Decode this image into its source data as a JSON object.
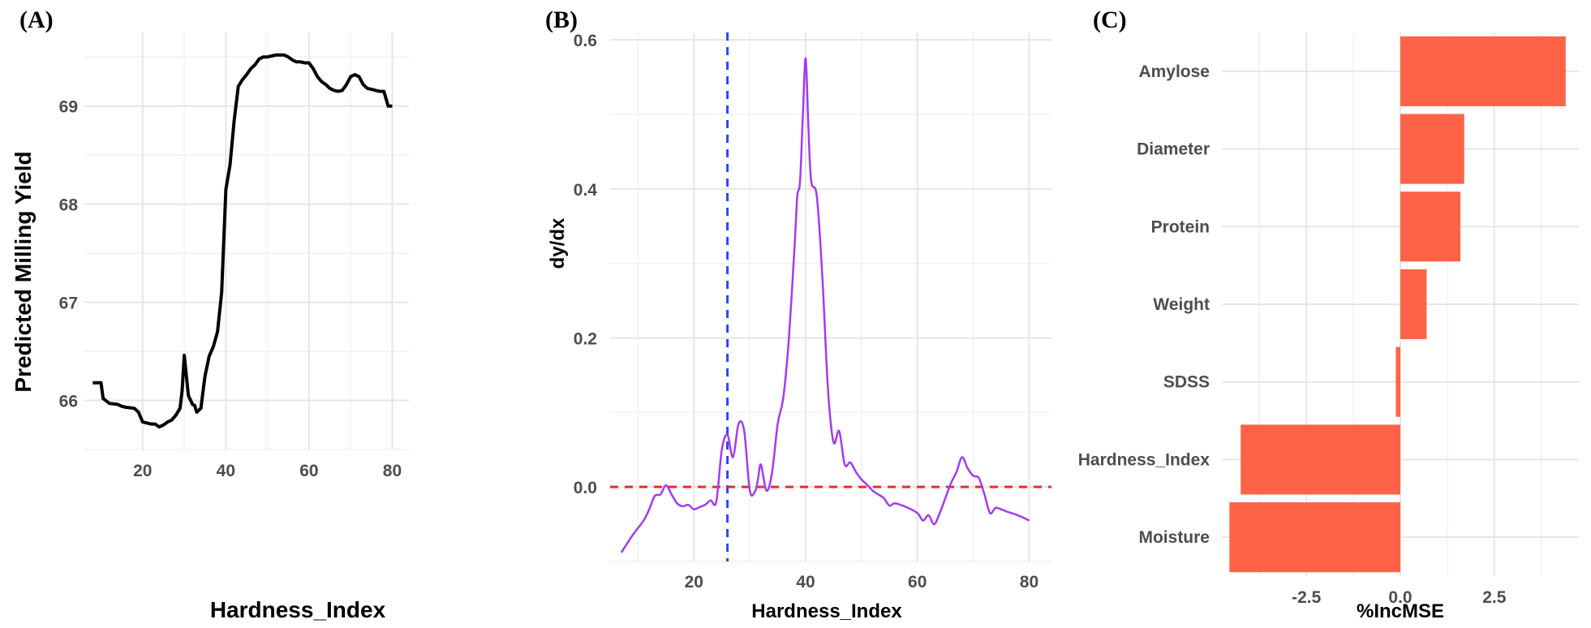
{
  "chart_data": [
    {
      "panel": "(A)",
      "type": "line",
      "xlabel": "Hardness_Index",
      "ylabel": "Predicted Milling Yield",
      "xlim": [
        6,
        84
      ],
      "ylim": [
        65.5,
        69.75
      ],
      "xticks": [
        20,
        40,
        60,
        80
      ],
      "yticks": [
        66,
        67,
        68,
        69
      ],
      "line_color": "#000000",
      "series": [
        {
          "name": "Predicted Milling Yield",
          "x": [
            8,
            10,
            10.5,
            12,
            14,
            15,
            16,
            18,
            19,
            20,
            21,
            22,
            23,
            24,
            25,
            26,
            27,
            28,
            29,
            29.5,
            30,
            31,
            32,
            32.5,
            33,
            34,
            35,
            36,
            37,
            38,
            39,
            40,
            41,
            42,
            43,
            44,
            45,
            46,
            47,
            48,
            49,
            50,
            51,
            52,
            53,
            54,
            55,
            56,
            57,
            58,
            59,
            60,
            61,
            62,
            63,
            64,
            65,
            66,
            67,
            68,
            69,
            70,
            71,
            72,
            73,
            74,
            75,
            76,
            77,
            78,
            79,
            80
          ],
          "y": [
            66.18,
            66.18,
            66.02,
            65.97,
            65.96,
            65.94,
            65.93,
            65.92,
            65.88,
            65.78,
            65.77,
            65.76,
            65.76,
            65.73,
            65.75,
            65.78,
            65.8,
            65.85,
            65.92,
            66.1,
            66.46,
            66.05,
            65.96,
            65.95,
            65.88,
            65.92,
            66.25,
            66.45,
            66.55,
            66.7,
            67.1,
            68.15,
            68.4,
            68.85,
            69.2,
            69.27,
            69.32,
            69.38,
            69.42,
            69.48,
            69.5,
            69.5,
            69.51,
            69.52,
            69.52,
            69.52,
            69.5,
            69.47,
            69.45,
            69.45,
            69.44,
            69.44,
            69.38,
            69.3,
            69.25,
            69.22,
            69.18,
            69.16,
            69.15,
            69.16,
            69.22,
            69.3,
            69.32,
            69.3,
            69.22,
            69.18,
            69.17,
            69.16,
            69.15,
            69.15,
            69.0,
            69.0
          ]
        }
      ]
    },
    {
      "panel": "(B)",
      "type": "line",
      "xlabel": "Hardness_Index",
      "ylabel": "dy/dx",
      "xlim": [
        5,
        84
      ],
      "ylim": [
        -0.1,
        0.61
      ],
      "xticks": [
        20,
        40,
        60,
        80
      ],
      "yticks": [
        0.0,
        0.2,
        0.4,
        0.6
      ],
      "ytick_labels": [
        "0.0",
        "0.2",
        "0.4",
        "0.6"
      ],
      "line_color": "#a23cf0",
      "reference_lines": [
        {
          "orientation": "vertical",
          "value": 26,
          "color": "#2e44f5",
          "style": "dashed"
        },
        {
          "orientation": "horizontal",
          "value": 0.0,
          "color": "#ee2b2b",
          "style": "dashed"
        }
      ],
      "series": [
        {
          "name": "dy/dx",
          "x": [
            7,
            9,
            11,
            12,
            13,
            14,
            15,
            16,
            17,
            18,
            19,
            20,
            21,
            22,
            23,
            24,
            25,
            26,
            27,
            28,
            29,
            30,
            31,
            31.5,
            32,
            33,
            34,
            35,
            36,
            37,
            38,
            38.5,
            39,
            39.5,
            40,
            40.5,
            41,
            42,
            43,
            44,
            45,
            46,
            47,
            48,
            49,
            50,
            51,
            52,
            53,
            54,
            55,
            56,
            58,
            60,
            61,
            62,
            63,
            64,
            65,
            66,
            67,
            68,
            69,
            70,
            71,
            72,
            73,
            74,
            75,
            76,
            78,
            80
          ],
          "y": [
            -0.088,
            -0.065,
            -0.045,
            -0.03,
            -0.012,
            -0.01,
            0.002,
            -0.01,
            -0.022,
            -0.026,
            -0.024,
            -0.03,
            -0.027,
            -0.024,
            -0.018,
            -0.02,
            0.05,
            0.07,
            0.04,
            0.085,
            0.075,
            -0.005,
            -0.005,
            0.012,
            0.03,
            -0.005,
            0.02,
            0.085,
            0.12,
            0.2,
            0.32,
            0.39,
            0.41,
            0.5,
            0.575,
            0.48,
            0.41,
            0.39,
            0.28,
            0.13,
            0.06,
            0.075,
            0.03,
            0.033,
            0.02,
            0.01,
            0.003,
            -0.005,
            -0.01,
            -0.015,
            -0.025,
            -0.022,
            -0.027,
            -0.035,
            -0.045,
            -0.038,
            -0.05,
            -0.035,
            -0.015,
            0.005,
            0.02,
            0.04,
            0.025,
            0.015,
            0.012,
            -0.01,
            -0.035,
            -0.028,
            -0.03,
            -0.033,
            -0.038,
            -0.045
          ]
        }
      ]
    },
    {
      "panel": "(C)",
      "type": "bar",
      "orientation": "horizontal",
      "xlabel": "%IncMSE",
      "ylabel": "",
      "xlim": [
        -4.75,
        4.75
      ],
      "xticks": [
        -2.5,
        0.0,
        2.5
      ],
      "xtick_labels": [
        "-2.5",
        "0.0",
        "2.5"
      ],
      "bar_color": "#ff6347",
      "categories": [
        "Amylose",
        "Diameter",
        "Protein",
        "Weight",
        "SDSS",
        "Hardness_Index",
        "Moisture"
      ],
      "values": [
        4.4,
        1.7,
        1.6,
        0.7,
        -0.12,
        -4.25,
        -4.55
      ]
    }
  ]
}
